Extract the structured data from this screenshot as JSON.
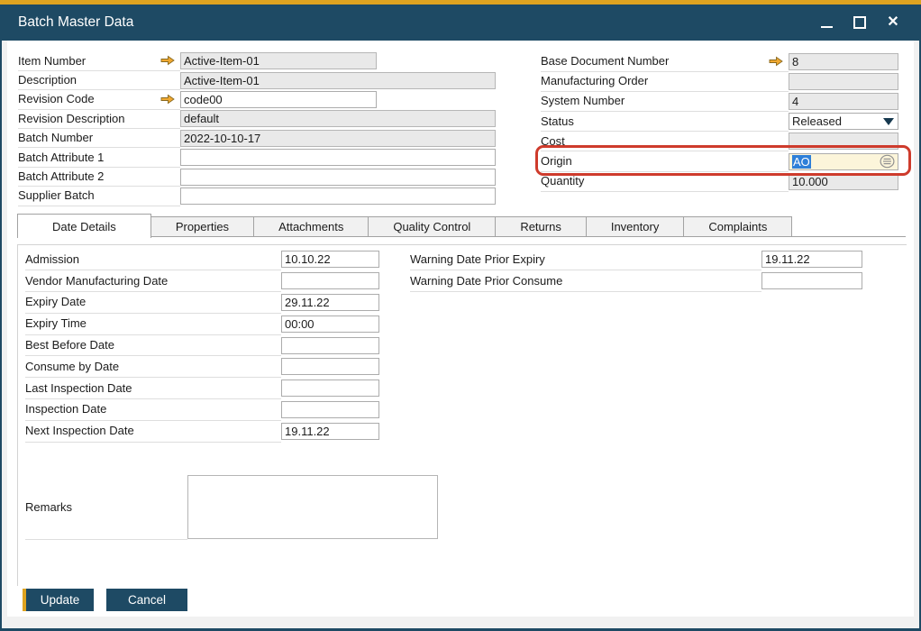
{
  "window": {
    "title": "Batch Master Data",
    "controls": {
      "minimize": "minimize",
      "maximize": "maximize",
      "close": "close"
    }
  },
  "colors": {
    "accent_gold": "#DEA320",
    "titlebar_navy": "#1E4A64",
    "highlight_red": "#CE3B2C",
    "selection_blue": "#2E7FD8",
    "active_field_bg": "#FCF5DA",
    "readonly_field_bg": "#E9E9E9"
  },
  "header_fields": {
    "left": [
      {
        "label": "Item Number",
        "value": "Active-Item-01",
        "type": "readonly",
        "arrow": true,
        "size": "narrow"
      },
      {
        "label": "Description",
        "value": "Active-Item-01",
        "type": "readonly",
        "arrow": false,
        "size": "wide"
      },
      {
        "label": "Revision Code",
        "value": "code00",
        "type": "editable",
        "arrow": true,
        "size": "narrow"
      },
      {
        "label": "Revision Description",
        "value": "default",
        "type": "readonly",
        "arrow": false,
        "size": "wide"
      },
      {
        "label": "Batch Number",
        "value": "2022-10-10-17",
        "type": "readonly",
        "arrow": false,
        "size": "wide"
      },
      {
        "label": "Batch Attribute 1",
        "value": "",
        "type": "editable",
        "arrow": false,
        "size": "wide"
      },
      {
        "label": "Batch Attribute 2",
        "value": "",
        "type": "editable",
        "arrow": false,
        "size": "wide"
      },
      {
        "label": "Supplier Batch",
        "value": "",
        "type": "editable",
        "arrow": false,
        "size": "wide"
      }
    ],
    "right": [
      {
        "label": "Base Document Number",
        "value": "8",
        "type": "readonly",
        "arrow": true
      },
      {
        "label": "Manufacturing Order",
        "value": "",
        "type": "readonly",
        "arrow": false
      },
      {
        "label": "System Number",
        "value": "4",
        "type": "readonly",
        "arrow": false
      },
      {
        "label": "Status",
        "value": "Released",
        "type": "dropdown",
        "arrow": false
      },
      {
        "label": "Cost",
        "value": "",
        "type": "readonly",
        "arrow": false
      },
      {
        "label": "Origin",
        "value": "AO",
        "type": "active",
        "arrow": false,
        "selected": true,
        "cfl_icon": true,
        "highlighted": true
      },
      {
        "label": "Quantity",
        "value": "10.000",
        "type": "readonly",
        "arrow": false
      }
    ]
  },
  "tabs": [
    {
      "label": "Date Details",
      "active": true
    },
    {
      "label": "Properties",
      "active": false
    },
    {
      "label": "Attachments",
      "active": false
    },
    {
      "label": "Quality Control",
      "active": false
    },
    {
      "label": "Returns",
      "active": false
    },
    {
      "label": "Inventory",
      "active": false
    },
    {
      "label": "Complaints",
      "active": false
    }
  ],
  "date_details": {
    "left": [
      {
        "label": "Admission",
        "value": "10.10.22"
      },
      {
        "label": "Vendor Manufacturing Date",
        "value": ""
      },
      {
        "label": "Expiry Date",
        "value": "29.11.22"
      },
      {
        "label": "Expiry Time",
        "value": "00:00"
      },
      {
        "label": "Best Before Date",
        "value": ""
      },
      {
        "label": "Consume by Date",
        "value": ""
      },
      {
        "label": "Last Inspection Date",
        "value": ""
      },
      {
        "label": "Inspection Date",
        "value": ""
      },
      {
        "label": "Next Inspection Date",
        "value": "19.11.22"
      }
    ],
    "right": [
      {
        "label": "Warning Date Prior Expiry",
        "value": "19.11.22"
      },
      {
        "label": "Warning Date Prior Consume",
        "value": ""
      }
    ],
    "remarks": {
      "label": "Remarks",
      "value": ""
    }
  },
  "footer": {
    "update_label": "Update",
    "cancel_label": "Cancel"
  }
}
